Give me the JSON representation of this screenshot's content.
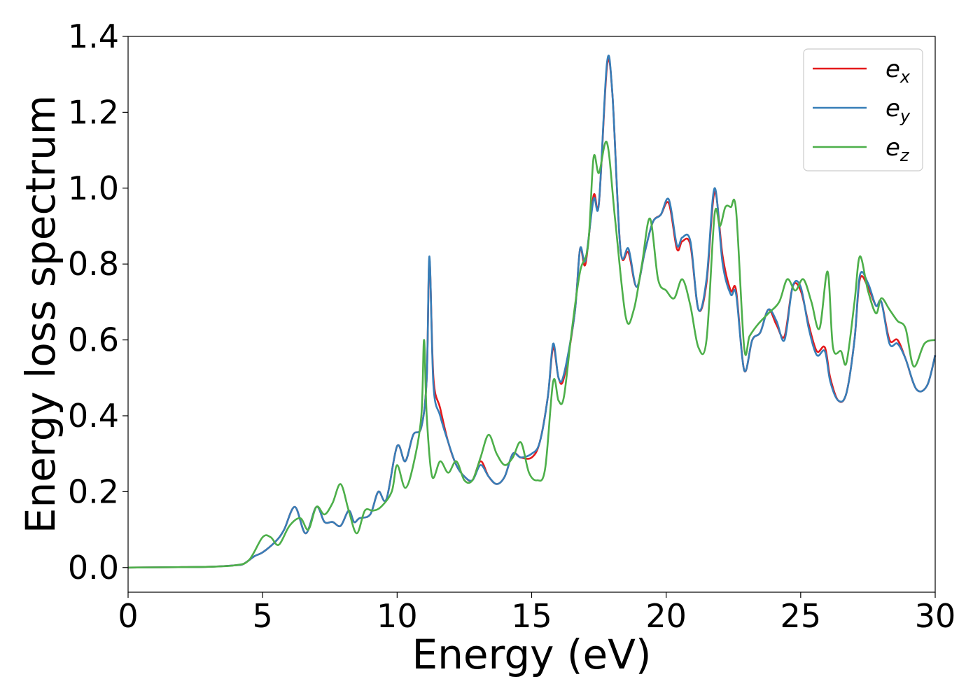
{
  "chart_data": {
    "type": "line",
    "xlabel": "Energy (eV)",
    "ylabel": "Energy loss spectrum",
    "xlim": [
      0,
      30
    ],
    "ylim": [
      -0.065,
      1.4
    ],
    "xticks": [
      0,
      5,
      10,
      15,
      20,
      25,
      30
    ],
    "xtick_labels": [
      "0",
      "5",
      "10",
      "15",
      "20",
      "25",
      "30"
    ],
    "yticks": [
      0.0,
      0.2,
      0.4,
      0.6,
      0.8,
      1.0,
      1.2,
      1.4
    ],
    "ytick_labels": [
      "0.0",
      "0.2",
      "0.4",
      "0.6",
      "0.8",
      "1.0",
      "1.2",
      "1.4"
    ],
    "grid": false,
    "legend_position": "top-right",
    "series": [
      {
        "name": "e_x",
        "legend_base": "e",
        "legend_sub": "x",
        "color": "#e41a1c",
        "x": [
          0,
          2,
          3,
          4,
          4.3,
          4.7,
          5,
          5.5,
          5.8,
          6.2,
          6.6,
          7,
          7.3,
          7.6,
          7.9,
          8.2,
          8.4,
          8.6,
          9,
          9.3,
          9.6,
          10,
          10.3,
          10.6,
          10.9,
          11.1,
          11.2,
          11.35,
          11.6,
          11.9,
          12.2,
          12.5,
          12.8,
          13.1,
          13.4,
          13.7,
          14,
          14.3,
          14.6,
          15,
          15.3,
          15.6,
          15.8,
          16,
          16.2,
          16.6,
          16.8,
          17,
          17.3,
          17.5,
          17.8,
          18,
          18.3,
          18.6,
          18.9,
          19.2,
          19.5,
          19.8,
          20.1,
          20.4,
          20.6,
          20.9,
          21.2,
          21.5,
          21.8,
          22.1,
          22.4,
          22.6,
          22.9,
          23.2,
          23.5,
          23.8,
          24.1,
          24.4,
          24.7,
          25,
          25.3,
          25.6,
          25.9,
          26.1,
          26.4,
          26.7,
          27,
          27.2,
          27.5,
          27.8,
          28,
          28.3,
          28.6,
          28.9,
          29.3,
          29.7,
          30
        ],
        "values": [
          0,
          0.001,
          0.002,
          0.006,
          0.01,
          0.03,
          0.04,
          0.07,
          0.1,
          0.16,
          0.09,
          0.16,
          0.12,
          0.12,
          0.11,
          0.15,
          0.12,
          0.13,
          0.14,
          0.2,
          0.18,
          0.32,
          0.28,
          0.35,
          0.37,
          0.5,
          0.81,
          0.5,
          0.42,
          0.33,
          0.27,
          0.24,
          0.23,
          0.28,
          0.24,
          0.22,
          0.24,
          0.3,
          0.29,
          0.29,
          0.33,
          0.45,
          0.58,
          0.5,
          0.5,
          0.67,
          0.84,
          0.8,
          0.98,
          0.96,
          1.32,
          1.25,
          0.84,
          0.83,
          0.74,
          0.83,
          0.91,
          0.93,
          0.96,
          0.84,
          0.86,
          0.85,
          0.68,
          0.75,
          0.99,
          0.82,
          0.73,
          0.73,
          0.52,
          0.6,
          0.62,
          0.68,
          0.64,
          0.61,
          0.74,
          0.73,
          0.64,
          0.57,
          0.58,
          0.5,
          0.44,
          0.46,
          0.6,
          0.76,
          0.74,
          0.69,
          0.7,
          0.6,
          0.6,
          0.55,
          0.47,
          0.48,
          0.56
        ]
      },
      {
        "name": "e_y",
        "legend_base": "e",
        "legend_sub": "y",
        "color": "#377eb8",
        "x": [
          0,
          2,
          3,
          4,
          4.3,
          4.7,
          5,
          5.5,
          5.8,
          6.2,
          6.6,
          7,
          7.3,
          7.6,
          7.9,
          8.2,
          8.4,
          8.6,
          9,
          9.3,
          9.6,
          10,
          10.3,
          10.6,
          10.9,
          11.1,
          11.2,
          11.35,
          11.6,
          11.9,
          12.2,
          12.5,
          12.8,
          13.1,
          13.4,
          13.7,
          14,
          14.3,
          14.6,
          15,
          15.3,
          15.6,
          15.8,
          16,
          16.2,
          16.6,
          16.8,
          17,
          17.3,
          17.5,
          17.8,
          18,
          18.3,
          18.6,
          18.9,
          19.2,
          19.5,
          19.8,
          20.1,
          20.4,
          20.6,
          20.9,
          21.2,
          21.5,
          21.8,
          22.1,
          22.4,
          22.6,
          22.9,
          23.2,
          23.5,
          23.8,
          24.1,
          24.4,
          24.7,
          25,
          25.3,
          25.6,
          25.9,
          26.1,
          26.4,
          26.7,
          27,
          27.2,
          27.5,
          27.8,
          28,
          28.3,
          28.6,
          28.9,
          29.3,
          29.7,
          30
        ],
        "values": [
          0,
          0.001,
          0.002,
          0.006,
          0.01,
          0.03,
          0.04,
          0.07,
          0.1,
          0.16,
          0.09,
          0.16,
          0.12,
          0.12,
          0.11,
          0.15,
          0.12,
          0.13,
          0.14,
          0.2,
          0.18,
          0.32,
          0.28,
          0.35,
          0.37,
          0.5,
          0.82,
          0.48,
          0.4,
          0.33,
          0.27,
          0.24,
          0.23,
          0.27,
          0.24,
          0.22,
          0.24,
          0.3,
          0.29,
          0.3,
          0.33,
          0.45,
          0.59,
          0.5,
          0.51,
          0.67,
          0.84,
          0.81,
          0.97,
          0.96,
          1.33,
          1.25,
          0.84,
          0.84,
          0.74,
          0.83,
          0.91,
          0.93,
          0.97,
          0.85,
          0.87,
          0.86,
          0.68,
          0.76,
          1.0,
          0.8,
          0.72,
          0.72,
          0.52,
          0.6,
          0.62,
          0.68,
          0.65,
          0.6,
          0.74,
          0.74,
          0.63,
          0.56,
          0.57,
          0.49,
          0.44,
          0.46,
          0.6,
          0.77,
          0.75,
          0.69,
          0.7,
          0.59,
          0.59,
          0.55,
          0.47,
          0.48,
          0.56
        ]
      },
      {
        "name": "e_z",
        "legend_base": "e",
        "legend_sub": "z",
        "color": "#4daf4a",
        "x": [
          0,
          2,
          3,
          4,
          4.5,
          5,
          5.3,
          5.6,
          6,
          6.4,
          6.7,
          7,
          7.3,
          7.6,
          7.9,
          8.2,
          8.5,
          8.8,
          9.1,
          9.4,
          9.8,
          10,
          10.3,
          10.6,
          10.9,
          11,
          11.1,
          11.3,
          11.6,
          11.9,
          12.2,
          12.5,
          12.8,
          13.1,
          13.4,
          13.7,
          14,
          14.3,
          14.6,
          14.9,
          15.2,
          15.5,
          15.8,
          16,
          16.2,
          16.5,
          16.8,
          17.1,
          17.3,
          17.5,
          17.8,
          18.1,
          18.5,
          18.8,
          19.1,
          19.4,
          19.7,
          20,
          20.3,
          20.6,
          20.9,
          21.2,
          21.5,
          21.8,
          22,
          22.2,
          22.4,
          22.6,
          22.9,
          23.1,
          23.4,
          23.8,
          24.2,
          24.5,
          24.8,
          25.1,
          25.4,
          25.7,
          26,
          26.2,
          26.5,
          26.7,
          27,
          27.2,
          27.5,
          27.8,
          28,
          28.3,
          28.6,
          28.9,
          29.2,
          29.6,
          30
        ],
        "values": [
          0,
          0.001,
          0.002,
          0.006,
          0.02,
          0.08,
          0.08,
          0.06,
          0.11,
          0.13,
          0.1,
          0.16,
          0.14,
          0.17,
          0.22,
          0.15,
          0.09,
          0.15,
          0.15,
          0.16,
          0.2,
          0.27,
          0.21,
          0.27,
          0.4,
          0.6,
          0.4,
          0.24,
          0.28,
          0.25,
          0.28,
          0.23,
          0.23,
          0.29,
          0.35,
          0.3,
          0.27,
          0.29,
          0.33,
          0.25,
          0.23,
          0.26,
          0.49,
          0.44,
          0.45,
          0.63,
          0.78,
          0.85,
          1.08,
          1.04,
          1.12,
          0.92,
          0.66,
          0.68,
          0.8,
          0.92,
          0.76,
          0.73,
          0.71,
          0.76,
          0.69,
          0.58,
          0.6,
          0.93,
          0.9,
          0.95,
          0.95,
          0.94,
          0.58,
          0.61,
          0.64,
          0.67,
          0.7,
          0.76,
          0.73,
          0.76,
          0.7,
          0.63,
          0.78,
          0.58,
          0.57,
          0.54,
          0.7,
          0.82,
          0.73,
          0.67,
          0.71,
          0.68,
          0.65,
          0.63,
          0.53,
          0.59,
          0.6
        ]
      }
    ]
  }
}
